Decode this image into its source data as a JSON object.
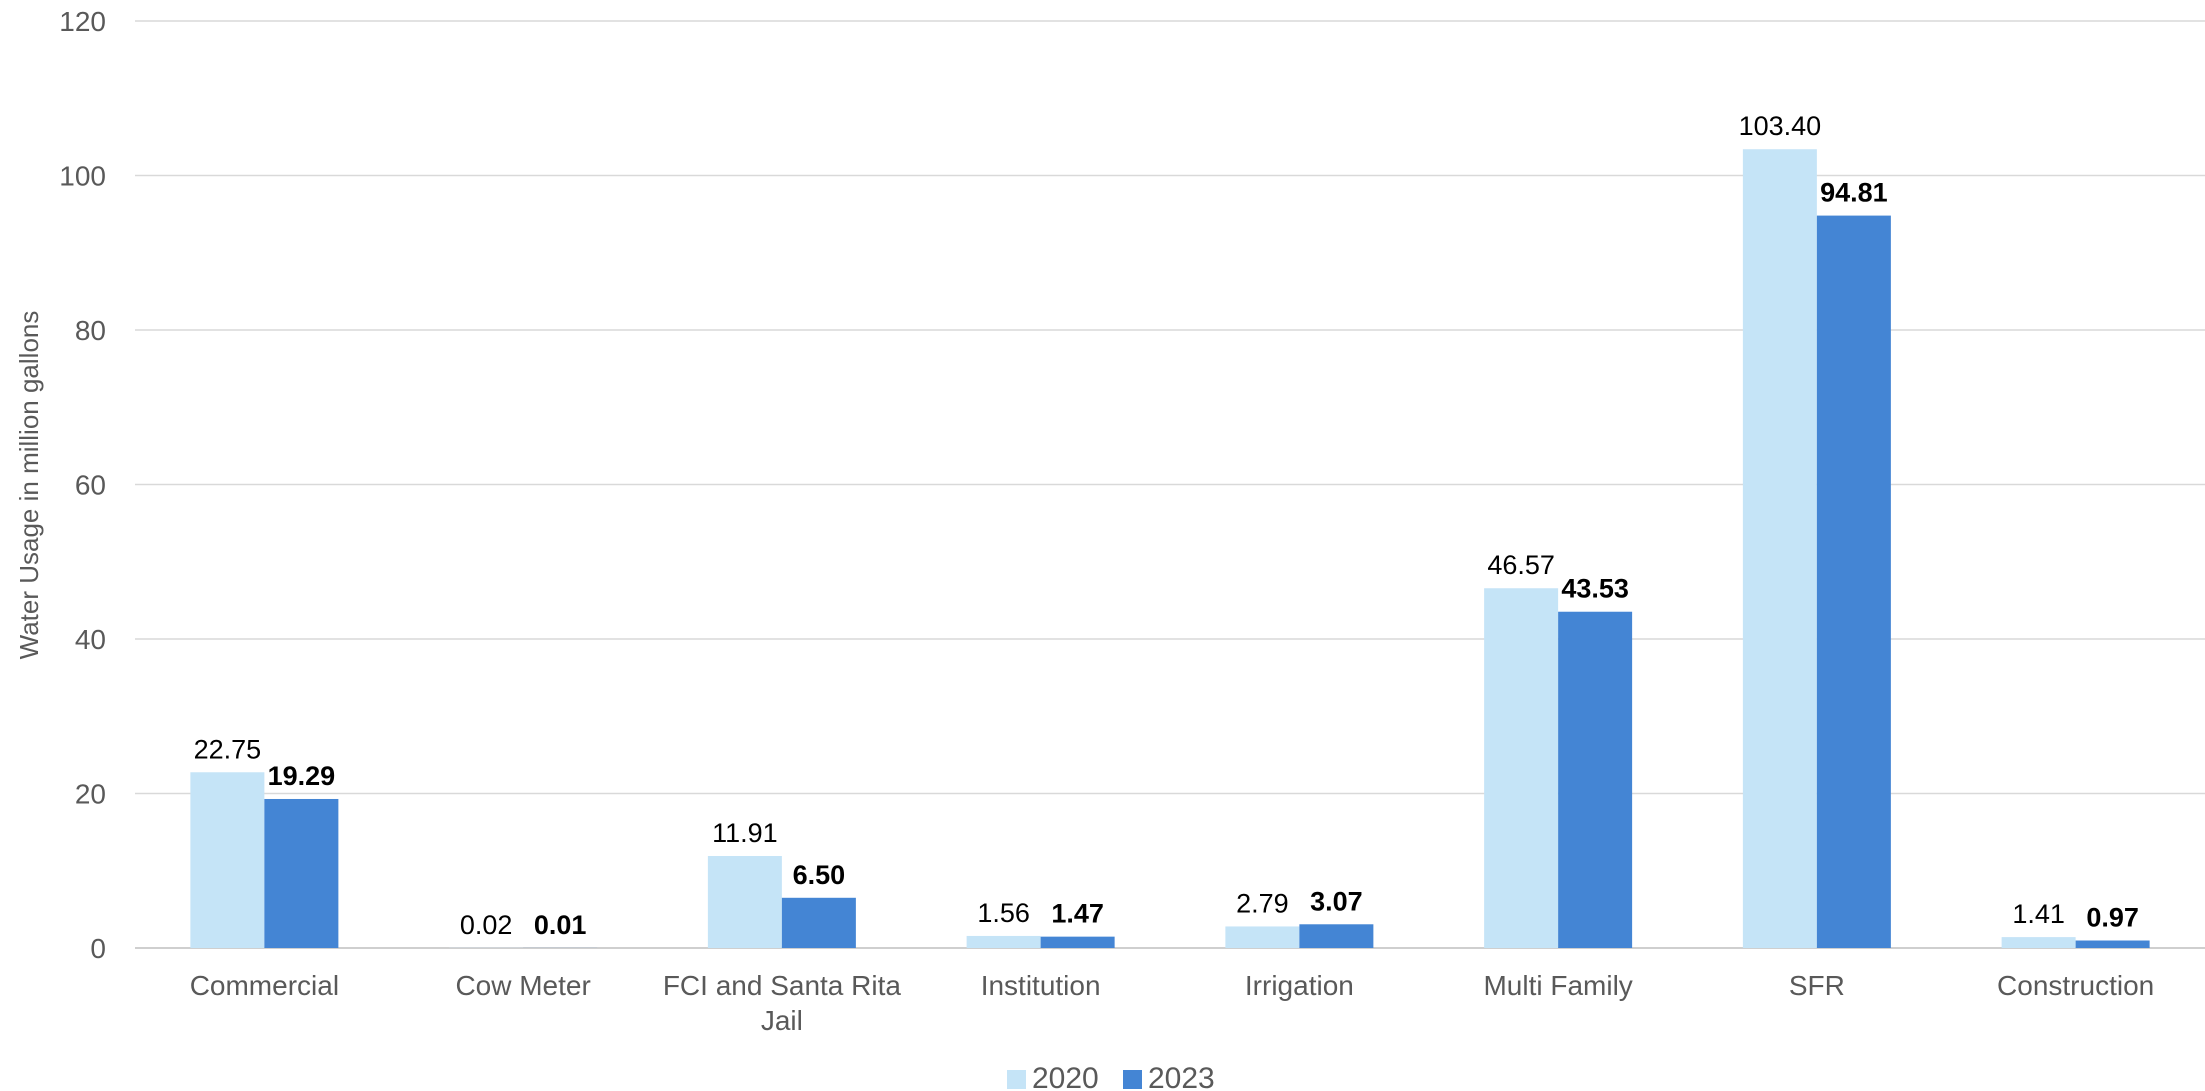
{
  "chart_data": {
    "type": "bar",
    "ylabel": "Water Usage in million gallons",
    "ylim": [
      0,
      120
    ],
    "yticks": [
      "0",
      "20",
      "40",
      "60",
      "80",
      "100",
      "120"
    ],
    "grid": true,
    "legend_position": "bottom",
    "categories": [
      "Commercial",
      "Cow Meter",
      "FCI and Santa Rita Jail",
      "Institution",
      "Irrigation",
      "Multi Family",
      "SFR",
      "Construction"
    ],
    "series": [
      {
        "name": "2020",
        "color": "#c5e4f7",
        "label_bold": false,
        "values": [
          22.75,
          0.02,
          11.91,
          1.56,
          2.79,
          46.57,
          103.4,
          1.41
        ],
        "labels": [
          "22.75",
          "0.02",
          "11.91",
          "1.56",
          "2.79",
          "46.57",
          "103.40",
          "1.41"
        ]
      },
      {
        "name": "2023",
        "color": "#4485d4",
        "label_bold": true,
        "values": [
          19.29,
          0.01,
          6.5,
          1.47,
          3.07,
          43.53,
          94.81,
          0.97
        ],
        "labels": [
          "19.29",
          "0.01",
          "6.50",
          "1.47",
          "3.07",
          "43.53",
          "94.81",
          "0.97"
        ]
      }
    ]
  }
}
